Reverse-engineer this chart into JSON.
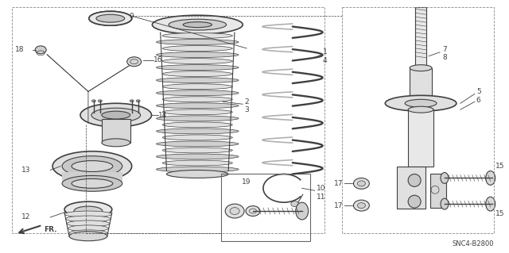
{
  "background_color": "#ffffff",
  "line_color": "#404040",
  "diagram_code": "SNC4-B2800",
  "fig_width": 6.4,
  "fig_height": 3.19,
  "dpi": 100
}
